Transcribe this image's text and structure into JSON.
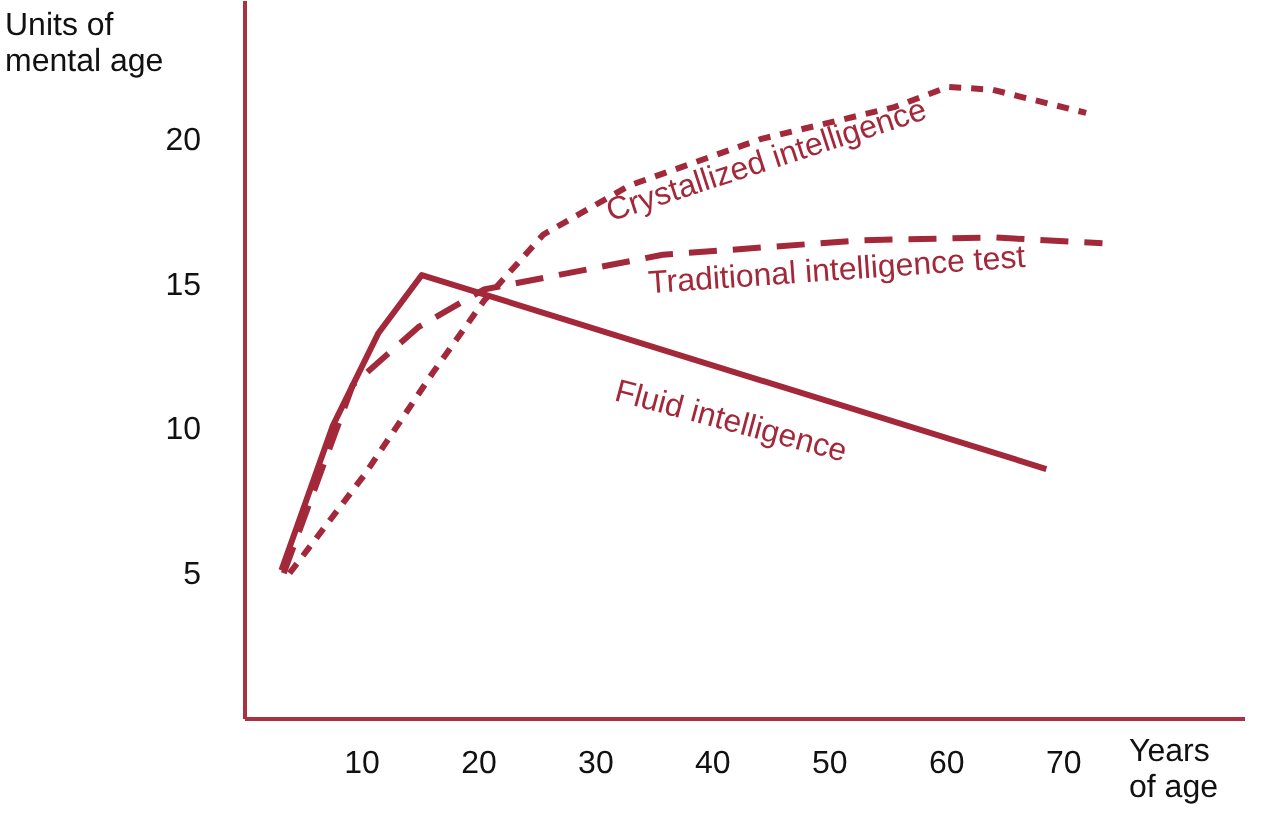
{
  "chart_data": {
    "type": "line",
    "xlabel": "Years of age",
    "ylabel": "Units of mental age",
    "xlim": [
      0,
      85.5
    ],
    "ylim": [
      0,
      24.8
    ],
    "xticks": [
      10,
      20,
      30,
      40,
      50,
      60,
      70
    ],
    "yticks": [
      5,
      10,
      15,
      20
    ],
    "marker": "none",
    "series": [
      {
        "name": "Fluid intelligence",
        "color": "#a3283a",
        "line_style": "solid",
        "x": [
          3.2,
          7.6,
          11.5,
          15.2,
          68.6
        ],
        "values": [
          5.1,
          10.1,
          13.3,
          15.3,
          8.6
        ]
      },
      {
        "name": "Traditional intelligence test",
        "color": "#a3283a",
        "line_style": "dashed",
        "x": [
          3.4,
          9.3,
          14.9,
          20.5,
          35.8,
          52.7,
          64,
          73.4
        ],
        "values": [
          5.0,
          11.5,
          13.5,
          14.8,
          16.0,
          16.5,
          16.6,
          16.4
        ]
      },
      {
        "name": "Crystallized intelligence",
        "color": "#a3283a",
        "line_style": "dotted",
        "x": [
          3.9,
          10.3,
          16.1,
          20.5,
          25.6,
          33,
          44.2,
          55.6,
          60.2,
          64,
          72
        ],
        "values": [
          5.0,
          8.4,
          11.9,
          14.4,
          16.7,
          18.4,
          20.0,
          21.1,
          21.8,
          21.7,
          20.9
        ]
      }
    ]
  }
}
